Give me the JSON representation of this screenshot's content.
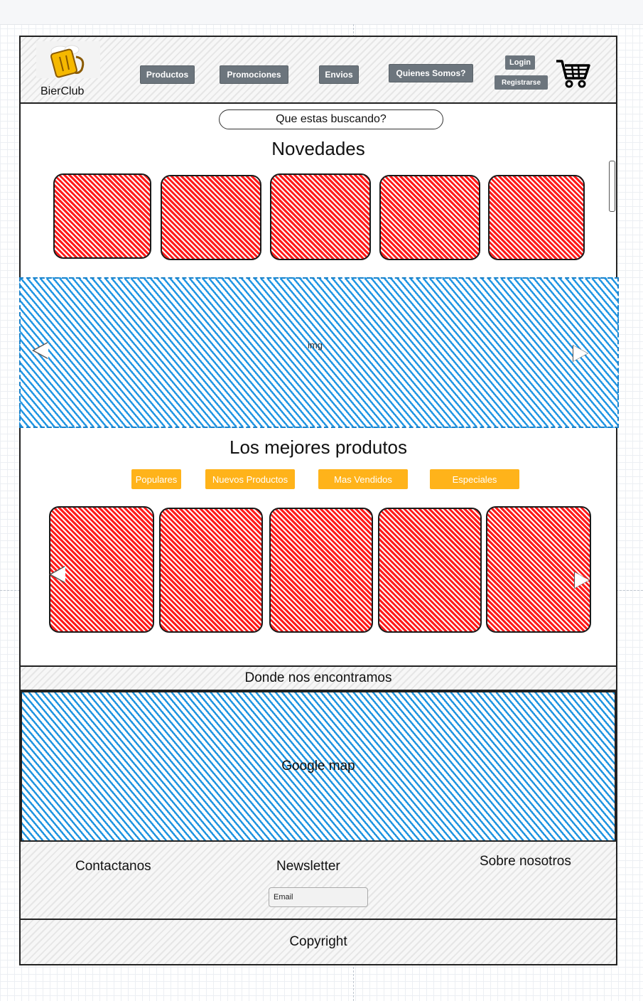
{
  "header": {
    "logo_text": "BierClub",
    "nav": [
      {
        "label": "Productos"
      },
      {
        "label": "Promociones"
      },
      {
        "label": "Envios"
      },
      {
        "label": "Quienes Somos?"
      }
    ],
    "login_label": "Login",
    "register_label": "Registrarse",
    "cart_icon": "cart-icon"
  },
  "search": {
    "label": "Que estas buscando?"
  },
  "novedades": {
    "title": "Novedades",
    "card_count": 5
  },
  "carousel": {
    "label": "img",
    "prev_icon": "arrow-left-icon",
    "next_icon": "arrow-right-icon"
  },
  "best": {
    "title": "Los mejores produtos",
    "filters": [
      {
        "label": "Populares"
      },
      {
        "label": "Nuevos Productos"
      },
      {
        "label": "Mas Vendidos"
      },
      {
        "label": "Especiales"
      }
    ]
  },
  "location": {
    "title": "Donde nos encontramos",
    "map_label": "Google map"
  },
  "footer": {
    "contact_label": "Contactanos",
    "newsletter_label": "Newsletter",
    "email_value": "Email",
    "about_label": "Sobre nosotros",
    "copyright": "Copyright"
  },
  "colors": {
    "accent": "#ffb31a",
    "nav_button": "#6c757d",
    "card_hatch": "#ff1a1a",
    "image_hatch": "#2196e3"
  }
}
